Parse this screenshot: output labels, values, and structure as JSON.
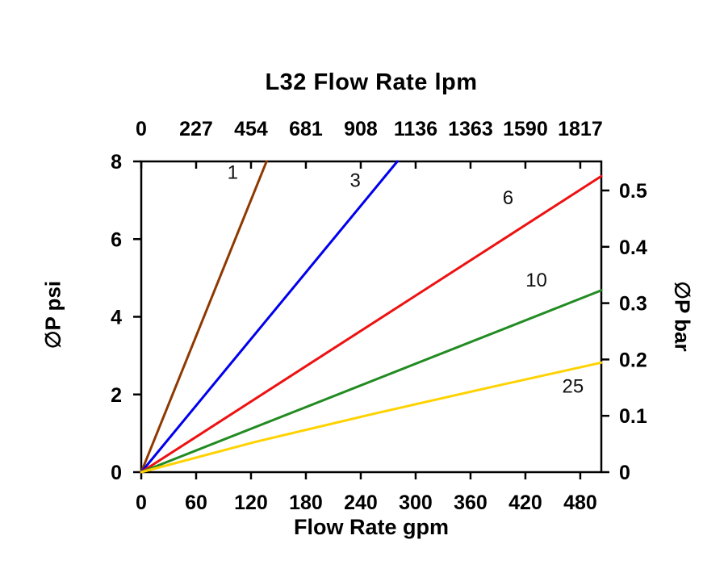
{
  "chart_data": {
    "type": "line",
    "title": "L32  Flow Rate lpm",
    "xlabel": "Flow Rate gpm",
    "ylabel_left": "∅P psi",
    "ylabel_right": "∅P bar",
    "xlim": [
      0,
      503
    ],
    "ylim": [
      0,
      8
    ],
    "grid": false,
    "legend_position": "inline-labels",
    "x_ticks_gpm": [
      0,
      60,
      120,
      180,
      240,
      300,
      360,
      420,
      480
    ],
    "top_ticks_lpm": [
      "0",
      "227",
      "454",
      "681",
      "908",
      "1136",
      "1363",
      "1590",
      "1817"
    ],
    "left_ticks_psi": [
      0,
      2,
      4,
      6,
      8
    ],
    "right_ticks_bar": [
      "0",
      "0.1",
      "0.2",
      "0.3",
      "0.4",
      "0.5"
    ],
    "bar_per_psi": 0.0689476,
    "series": [
      {
        "name": "1",
        "color": "#8F3900",
        "points": [
          [
            0,
            0
          ],
          [
            137,
            8
          ]
        ],
        "label_at": [
          100,
          7.55
        ]
      },
      {
        "name": "3",
        "color": "#0000EE",
        "points": [
          [
            0,
            0
          ],
          [
            280,
            8
          ]
        ],
        "label_at": [
          234,
          7.35
        ]
      },
      {
        "name": "6",
        "color": "#EE1111",
        "points": [
          [
            0,
            0
          ],
          [
            503,
            7.62
          ]
        ],
        "label_at": [
          401,
          6.9
        ]
      },
      {
        "name": "10",
        "color": "#228B22",
        "points": [
          [
            0,
            0
          ],
          [
            503,
            4.68
          ]
        ],
        "label_at": [
          432,
          4.78
        ]
      },
      {
        "name": "25",
        "color": "#FFD200",
        "points": [
          [
            0,
            0
          ],
          [
            125,
            0.78
          ],
          [
            250,
            1.48
          ],
          [
            375,
            2.15
          ],
          [
            503,
            2.82
          ]
        ],
        "label_at": [
          472,
          2.05
        ]
      }
    ]
  }
}
